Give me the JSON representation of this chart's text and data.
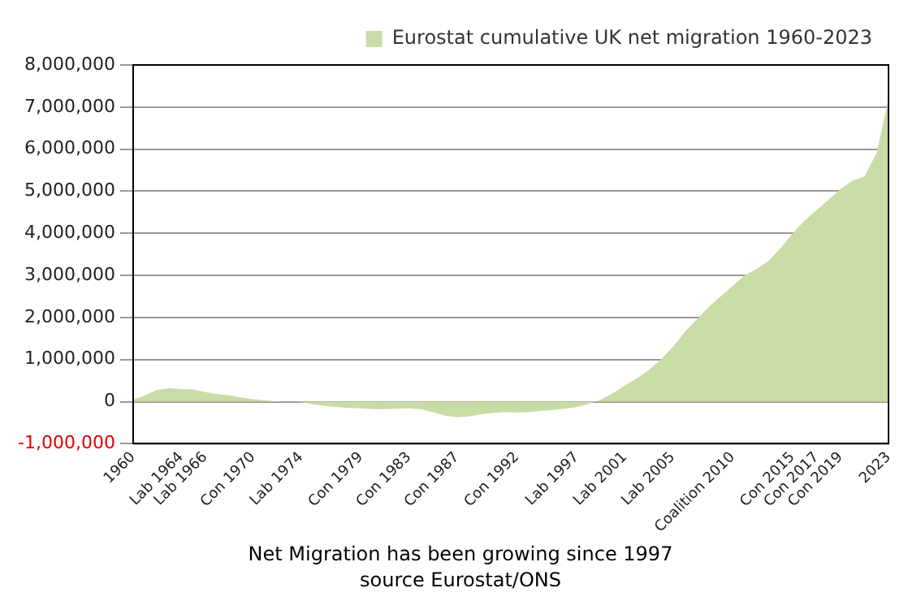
{
  "chart_data": {
    "type": "area",
    "categories": [
      "1960",
      null,
      null,
      null,
      "Lab 1964",
      null,
      "Lab 1966",
      null,
      null,
      null,
      "Con 1970",
      null,
      null,
      null,
      "Lab 1974",
      null,
      null,
      null,
      null,
      "Con 1979",
      null,
      null,
      null,
      "Con 1983",
      null,
      null,
      null,
      "Con 1987",
      null,
      null,
      null,
      null,
      "Con 1992",
      null,
      null,
      null,
      null,
      "Lab 1997",
      null,
      null,
      null,
      "Lab 2001",
      null,
      null,
      null,
      "Lab 2005",
      null,
      null,
      null,
      null,
      "Coalition 2010",
      null,
      null,
      null,
      null,
      "Con 2015",
      null,
      "Con 2017",
      null,
      "Con 2019",
      null,
      null,
      null,
      "2023"
    ],
    "series": [
      {
        "name": "Eurostat cumulative UK net migration 1960-2023",
        "color": "#c9dca6",
        "values": [
          50000,
          150000,
          280000,
          320000,
          300000,
          290000,
          230000,
          180000,
          150000,
          100000,
          60000,
          30000,
          10000,
          0,
          -10000,
          -60000,
          -100000,
          -130000,
          -150000,
          -160000,
          -180000,
          -180000,
          -170000,
          -160000,
          -180000,
          -250000,
          -330000,
          -370000,
          -350000,
          -300000,
          -270000,
          -250000,
          -260000,
          -250000,
          -220000,
          -200000,
          -170000,
          -130000,
          -50000,
          50000,
          200000,
          380000,
          550000,
          750000,
          1000000,
          1300000,
          1650000,
          1950000,
          2250000,
          2500000,
          2750000,
          3000000,
          3150000,
          3350000,
          3650000,
          4000000,
          4300000,
          4550000,
          4800000,
          5050000,
          5250000,
          5350000,
          5900000,
          7200000
        ]
      }
    ],
    "ylim": [
      -1000000,
      8000000
    ],
    "yticks": [
      {
        "value": -1000000,
        "label": "-1,000,000"
      },
      0,
      {
        "value": 1000000,
        "label": "1,000,000"
      },
      {
        "value": 2000000,
        "label": "2,000,000"
      },
      {
        "value": 3000000,
        "label": "3,000,000"
      },
      {
        "value": 4000000,
        "label": "4,000,000"
      },
      {
        "value": 5000000,
        "label": "5,000,000"
      },
      {
        "value": 6000000,
        "label": "6,000,000"
      },
      {
        "value": 7000000,
        "label": "7,000,000"
      },
      {
        "value": 8000000,
        "label": "8,000,000"
      }
    ],
    "grid": "y",
    "legend": "top",
    "annotations": [
      "Net Migration has been growing since 1997",
      "source Eurostat/ONS"
    ]
  }
}
